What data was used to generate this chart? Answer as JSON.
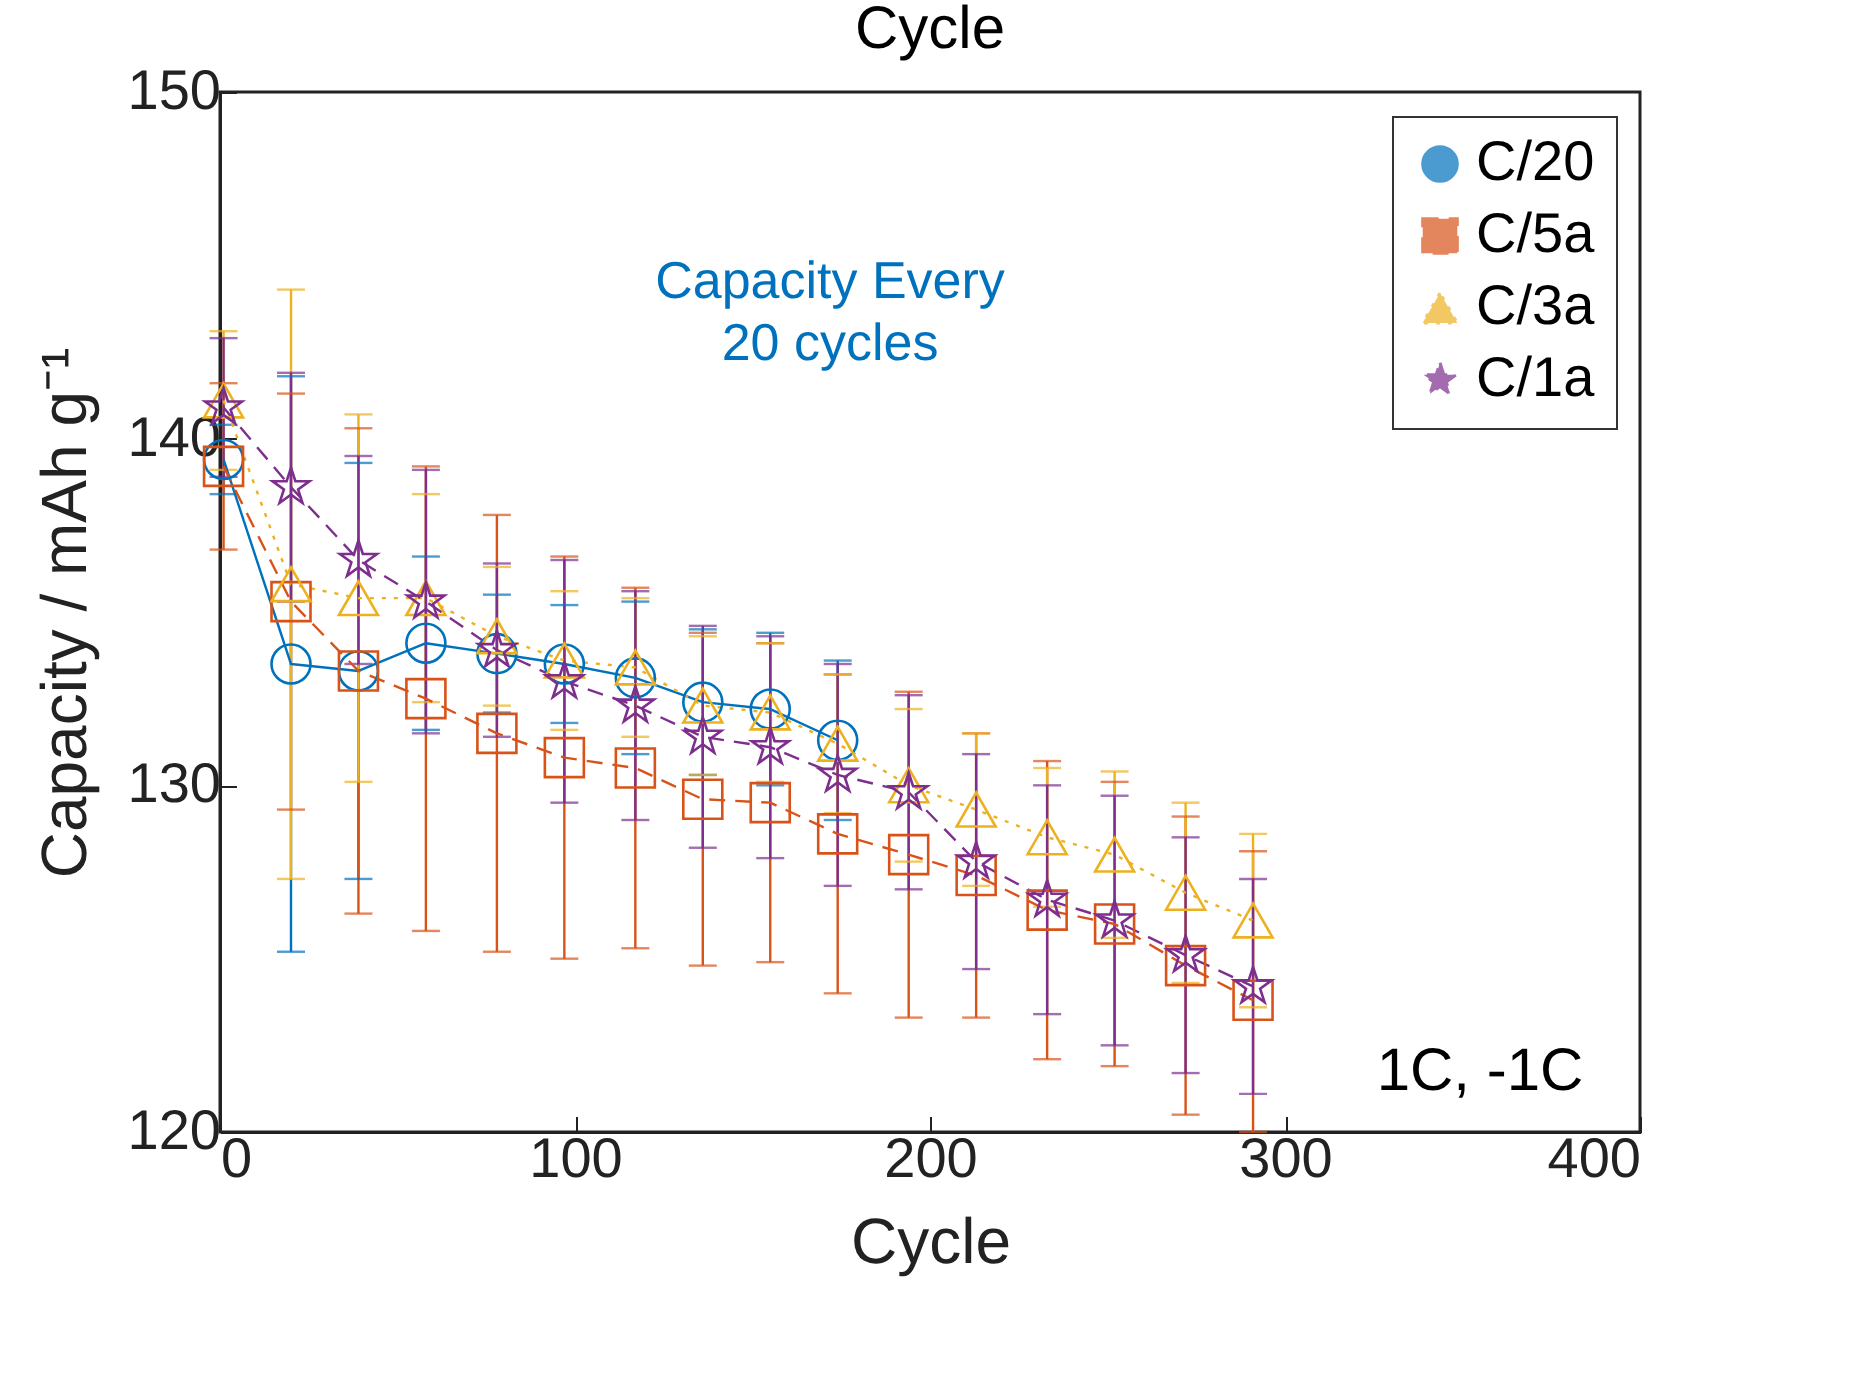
{
  "chart_data": {
    "type": "line",
    "title": "Cycle",
    "xlabel": "Cycle",
    "ylabel": "Capacity / mAh g⁻¹",
    "x": [
      1,
      20,
      39,
      58,
      78,
      97,
      117,
      136,
      155,
      174,
      194,
      213,
      233,
      252,
      272,
      291
    ],
    "series": [
      {
        "name": "C/20",
        "color": "#0072bd",
        "marker": "circle",
        "line_style": "solid",
        "values": [
          139.4,
          133.5,
          133.3,
          134.1,
          133.8,
          133.5,
          133.1,
          132.4,
          132.2,
          131.3,
          null,
          null,
          null,
          null,
          null,
          null
        ],
        "errors": [
          1.0,
          8.3,
          6,
          2.5,
          1.7,
          1.7,
          2.2,
          2.1,
          2.2,
          2.3,
          null,
          null,
          null,
          null,
          null,
          null
        ]
      },
      {
        "name": "C/5a",
        "color": "#d95319",
        "marker": "square",
        "line_style": "dashed",
        "values": [
          139.2,
          135.3,
          133.3,
          132.5,
          131.5,
          130.8,
          130.5,
          129.6,
          129.5,
          128.6,
          128.0,
          127.4,
          126.4,
          126.0,
          124.8,
          123.8
        ],
        "errors": [
          2.4,
          6,
          7,
          6.7,
          6.3,
          5.8,
          5.2,
          4.8,
          4.6,
          4.6,
          4.7,
          4.1,
          4.3,
          4.1,
          4.3,
          [
            120,
            128.1
          ]
        ]
      },
      {
        "name": "C/3a",
        "color": "#edb120",
        "marker": "triangle",
        "line_style": "dotted",
        "values": [
          141.1,
          135.8,
          135.4,
          135.4,
          134.3,
          133.6,
          133.4,
          132.3,
          132.1,
          131.2,
          130.0,
          129.3,
          128.5,
          128.0,
          126.9,
          126.1
        ],
        "errors": [
          2,
          8.5,
          5.3,
          3,
          2,
          2,
          2,
          2,
          2,
          2,
          2.2,
          2.2,
          2,
          2.4,
          2.6,
          2.5
        ]
      },
      {
        "name": "C/1a",
        "color": "#7e2f8e",
        "marker": "star",
        "line_style": "dashed",
        "values": [
          140.9,
          138.6,
          136.5,
          135.3,
          133.9,
          133.0,
          132.3,
          131.4,
          131.1,
          130.3,
          129.8,
          127.8,
          126.7,
          126.1,
          125.1,
          124.2
        ],
        "errors": [
          2,
          3.3,
          3,
          3.8,
          2.5,
          3.5,
          3.3,
          3.2,
          3.2,
          3.2,
          2.8,
          3.1,
          3.3,
          3.6,
          3.4,
          3.1
        ]
      }
    ],
    "xlim": [
      0,
      400
    ],
    "xticks": [
      0,
      100,
      200,
      300,
      400
    ],
    "ylim": [
      120,
      150
    ],
    "yticks": [
      120,
      130,
      140,
      150
    ],
    "grid": false,
    "legend": "top right",
    "annotations": [
      "Capacity Every\n20 cycles",
      "1C, -1C"
    ]
  }
}
